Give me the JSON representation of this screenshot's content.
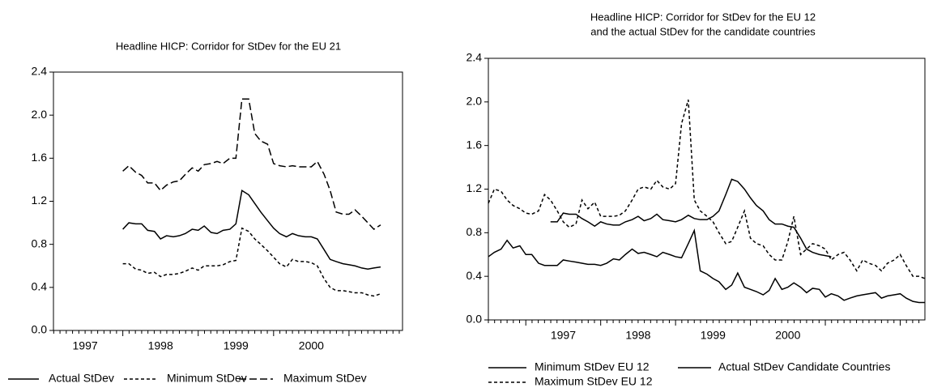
{
  "chart_data": [
    {
      "type": "line",
      "title": [
        "Headline HICP: Corridor for StDev for the EU 21"
      ],
      "x": [
        1998.0,
        1998.08,
        1998.17,
        1998.25,
        1998.33,
        1998.42,
        1998.5,
        1998.58,
        1998.67,
        1998.75,
        1998.83,
        1998.92,
        1999.0,
        1999.08,
        1999.17,
        1999.25,
        1999.33,
        1999.42,
        1999.5,
        1999.58,
        1999.67,
        1999.75,
        1999.83,
        1999.92,
        2000.0,
        2000.08,
        2000.17,
        2000.25,
        2000.33,
        2000.42,
        2000.5,
        2000.58,
        2000.67,
        2000.75,
        2000.83,
        2000.92,
        2001.0,
        2001.08,
        2001.17,
        2001.25,
        2001.33,
        2001.42
      ],
      "xlim": [
        1997.08,
        2001.71
      ],
      "xticks": [
        {
          "value": 1997.5,
          "label": "1997"
        },
        {
          "value": 1998.5,
          "label": "1998"
        },
        {
          "value": 1999.5,
          "label": "1999"
        },
        {
          "value": 2000.5,
          "label": "2000"
        }
      ],
      "ylim": [
        0,
        2.4
      ],
      "yticks": [
        {
          "value": 0,
          "label": "0.0"
        },
        0.4,
        0.8,
        1.2,
        1.6,
        {
          "value": 2,
          "label": "2.0"
        },
        2.4
      ],
      "series": [
        {
          "name": "Actual StDev",
          "color": "#000000",
          "dash": "solid",
          "values": [
            0.94,
            1.0,
            0.99,
            0.99,
            0.93,
            0.92,
            0.85,
            0.88,
            0.87,
            0.88,
            0.9,
            0.94,
            0.93,
            0.97,
            0.91,
            0.9,
            0.93,
            0.94,
            0.99,
            1.3,
            1.26,
            1.18,
            1.1,
            1.02,
            0.95,
            0.9,
            0.87,
            0.9,
            0.88,
            0.87,
            0.87,
            0.85,
            0.75,
            0.66,
            0.64,
            0.62,
            0.61,
            0.6,
            0.58,
            0.57,
            0.58,
            0.59
          ]
        },
        {
          "name": "Minimum StDev",
          "color": "#000000",
          "dash": "short-dash",
          "values": [
            0.62,
            0.62,
            0.57,
            0.56,
            0.53,
            0.54,
            0.5,
            0.52,
            0.52,
            0.53,
            0.55,
            0.58,
            0.56,
            0.6,
            0.6,
            0.6,
            0.61,
            0.64,
            0.65,
            0.95,
            0.92,
            0.85,
            0.8,
            0.74,
            0.68,
            0.62,
            0.59,
            0.66,
            0.64,
            0.64,
            0.63,
            0.6,
            0.48,
            0.4,
            0.37,
            0.37,
            0.36,
            0.35,
            0.35,
            0.33,
            0.32,
            0.34
          ]
        },
        {
          "name": "Maximum StDev",
          "color": "#000000",
          "dash": "long-dash",
          "values": [
            1.48,
            1.53,
            1.47,
            1.44,
            1.37,
            1.37,
            1.3,
            1.35,
            1.38,
            1.39,
            1.45,
            1.51,
            1.48,
            1.54,
            1.55,
            1.57,
            1.55,
            1.6,
            1.6,
            2.15,
            2.15,
            1.83,
            1.76,
            1.73,
            1.55,
            1.53,
            1.52,
            1.53,
            1.52,
            1.52,
            1.52,
            1.57,
            1.45,
            1.3,
            1.1,
            1.08,
            1.08,
            1.12,
            1.06,
            1.0,
            0.94,
            0.98
          ]
        }
      ]
    },
    {
      "type": "line",
      "title": [
        "Headline HICP: Corridor for StDev for the EU 12",
        "and the actual StDev for the candidate countries"
      ],
      "x": [
        1996.5,
        1996.58,
        1996.67,
        1996.75,
        1996.83,
        1996.92,
        1997.0,
        1997.08,
        1997.17,
        1997.25,
        1997.33,
        1997.42,
        1997.5,
        1997.58,
        1997.67,
        1997.75,
        1997.83,
        1997.92,
        1998.0,
        1998.08,
        1998.17,
        1998.25,
        1998.33,
        1998.42,
        1998.5,
        1998.58,
        1998.67,
        1998.75,
        1998.83,
        1998.92,
        1999.0,
        1999.08,
        1999.17,
        1999.25,
        1999.33,
        1999.42,
        1999.5,
        1999.58,
        1999.67,
        1999.75,
        1999.83,
        1999.92,
        2000.0,
        2000.08,
        2000.17,
        2000.25,
        2000.33,
        2000.42,
        2000.5,
        2000.58,
        2000.67,
        2000.75,
        2000.83,
        2000.92,
        2001.0,
        2001.08,
        2001.17,
        2001.25,
        2001.33,
        2001.42,
        2001.5,
        2001.58,
        2001.67,
        2001.75,
        2001.83,
        2001.92,
        2002.0,
        2002.08,
        2002.17,
        2002.25,
        2002.33
      ],
      "xlim": [
        1996.5,
        2002.33
      ],
      "xticks": [
        {
          "value": 1997.5,
          "label": "1997"
        },
        {
          "value": 1998.5,
          "label": "1998"
        },
        {
          "value": 1999.5,
          "label": "1999"
        },
        {
          "value": 2000.5,
          "label": "2000"
        }
      ],
      "ylim": [
        0,
        2.4
      ],
      "yticks": [
        {
          "value": 0,
          "label": "0.0"
        },
        0.4,
        0.8,
        1.2,
        1.6,
        {
          "value": 2,
          "label": "2.0"
        },
        2.4
      ],
      "series": [
        {
          "name": "Minimum StDev EU 12",
          "color": "#000000",
          "dash": "solid",
          "values": [
            0.58,
            0.62,
            0.65,
            0.73,
            0.66,
            0.68,
            0.6,
            0.6,
            0.52,
            0.5,
            0.5,
            0.5,
            0.55,
            0.54,
            0.53,
            0.52,
            0.51,
            0.51,
            0.5,
            0.52,
            0.56,
            0.55,
            0.6,
            0.65,
            0.61,
            0.62,
            0.6,
            0.58,
            0.62,
            0.6,
            0.58,
            0.57,
            0.7,
            0.82,
            0.45,
            0.42,
            0.38,
            0.35,
            0.28,
            0.32,
            0.43,
            0.3,
            0.28,
            0.26,
            0.23,
            0.27,
            0.38,
            0.28,
            0.3,
            0.34,
            0.3,
            0.25,
            0.29,
            0.28,
            0.21,
            0.24,
            0.22,
            0.18,
            0.2,
            0.22,
            0.23,
            0.24,
            0.25,
            0.2,
            0.22,
            0.23,
            0.24,
            0.2,
            0.17,
            0.16,
            0.16
          ]
        },
        {
          "name": "Actual StDev Candidate Countries",
          "color": "#000000",
          "dash": "solid",
          "values": [
            null,
            null,
            null,
            null,
            null,
            null,
            null,
            null,
            null,
            null,
            0.9,
            0.9,
            0.98,
            0.97,
            0.97,
            0.93,
            0.9,
            0.86,
            0.9,
            0.88,
            0.87,
            0.87,
            0.9,
            0.92,
            0.95,
            0.91,
            0.93,
            0.97,
            0.92,
            0.91,
            0.9,
            0.92,
            0.96,
            0.93,
            0.92,
            0.92,
            0.95,
            1.0,
            1.15,
            1.29,
            1.27,
            1.2,
            1.12,
            1.05,
            1.0,
            0.92,
            0.88,
            0.88,
            0.86,
            0.85,
            0.75,
            0.65,
            0.62,
            0.6,
            0.59,
            0.58,
            null,
            null,
            null,
            null,
            null,
            null,
            null,
            null,
            null,
            null,
            null,
            null,
            null,
            null,
            null
          ]
        },
        {
          "name": "Maximum StDev EU 12",
          "color": "#000000",
          "dash": "short-dash",
          "values": [
            1.07,
            1.2,
            1.18,
            1.1,
            1.05,
            1.02,
            0.98,
            0.97,
            1.0,
            1.15,
            1.1,
            1.0,
            0.9,
            0.85,
            0.88,
            1.1,
            1.02,
            1.08,
            0.95,
            0.95,
            0.95,
            0.96,
            1.0,
            1.1,
            1.2,
            1.22,
            1.2,
            1.28,
            1.22,
            1.2,
            1.25,
            1.8,
            2.02,
            1.1,
            1.0,
            0.95,
            0.9,
            0.8,
            0.7,
            0.72,
            0.85,
            1.0,
            0.75,
            0.7,
            0.68,
            0.6,
            0.55,
            0.55,
            0.72,
            0.95,
            0.6,
            0.65,
            0.7,
            0.68,
            0.65,
            0.55,
            0.6,
            0.62,
            0.55,
            0.45,
            0.55,
            0.52,
            0.5,
            0.45,
            0.52,
            0.55,
            0.6,
            0.5,
            0.4,
            0.4,
            0.38
          ]
        }
      ]
    }
  ]
}
